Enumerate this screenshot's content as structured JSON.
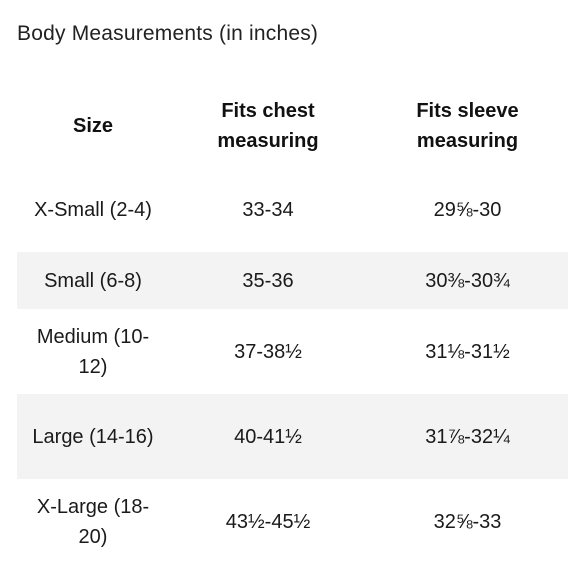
{
  "heading": "Body Measurements (in inches)",
  "table": {
    "headers": [
      "Size",
      "Fits chest measuring",
      "Fits sleeve measuring"
    ],
    "rows": [
      {
        "size": "X-Small (2-4)",
        "chest": "33-34",
        "sleeve": "29⅝-30"
      },
      {
        "size": "Small (6-8)",
        "chest": "35-36",
        "sleeve": "30⅜-30¾"
      },
      {
        "size": "Medium (10-12)",
        "chest": "37-38½",
        "sleeve": "31⅛-31½"
      },
      {
        "size": "Large (14-16)",
        "chest": "40-41½",
        "sleeve": "31⅞-32¼"
      },
      {
        "size": "X-Large (18-20)",
        "chest": "43½-45½",
        "sleeve": "32⅝-33"
      }
    ]
  },
  "colors": {
    "alt_row_background": "#f3f3f3",
    "text": "#1a1a1a"
  }
}
